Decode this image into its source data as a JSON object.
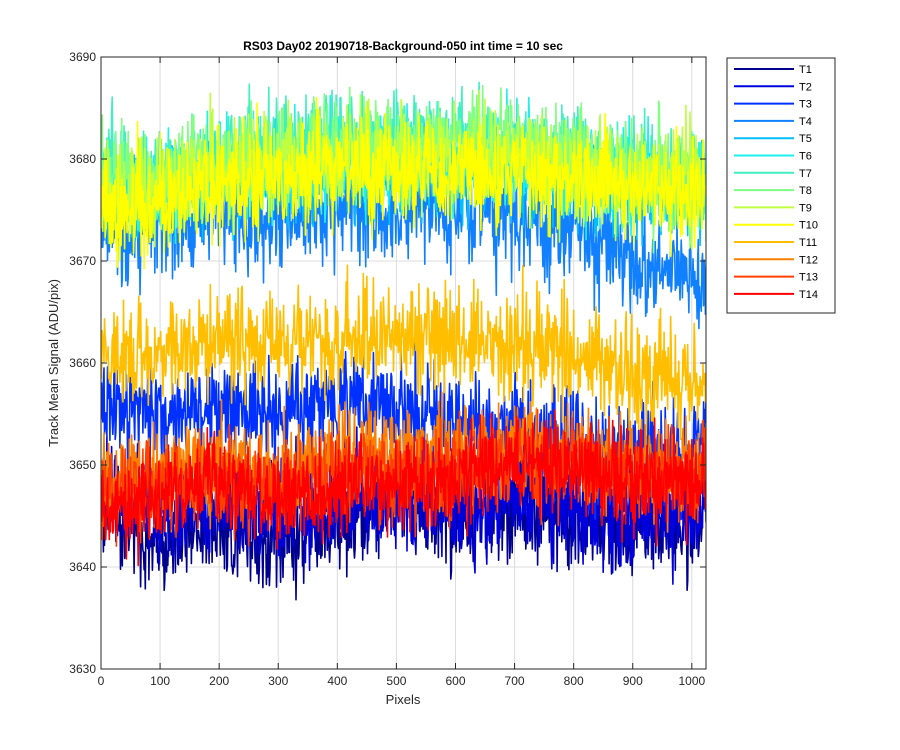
{
  "chart_data": {
    "type": "line",
    "title": "RS03 Day02 20190718-Background-050 int time = 10 sec",
    "xlabel": "Pixels",
    "ylabel": "Track Mean Signal (ADU/pix)",
    "xlim": [
      0,
      1024
    ],
    "ylim": [
      3630,
      3690
    ],
    "xticks": [
      0,
      100,
      200,
      300,
      400,
      500,
      600,
      700,
      800,
      900,
      1000
    ],
    "yticks": [
      3630,
      3640,
      3650,
      3660,
      3670,
      3680,
      3690
    ],
    "grid": true,
    "legend_position": "outside-top-right",
    "profile_x": [
      0,
      100,
      200,
      300,
      400,
      500,
      600,
      700,
      800,
      900,
      1024
    ],
    "series": [
      {
        "name": "T1",
        "color": "#00008f",
        "values": [
          3646,
          3643,
          3644,
          3642,
          3645,
          3646,
          3645,
          3646,
          3645,
          3644,
          3645
        ],
        "spread": 2.6
      },
      {
        "name": "T2",
        "color": "#0000df",
        "values": [
          3648,
          3645,
          3646,
          3645,
          3647,
          3647,
          3646,
          3647,
          3646,
          3645,
          3646
        ],
        "spread": 2.6
      },
      {
        "name": "T3",
        "color": "#0030ff",
        "values": [
          3656,
          3655,
          3656,
          3655,
          3656,
          3656,
          3654,
          3653,
          3652,
          3651,
          3651
        ],
        "spread": 2.6
      },
      {
        "name": "T4",
        "color": "#1080ff",
        "values": [
          3673,
          3674,
          3675,
          3674,
          3675,
          3675,
          3675,
          3674,
          3674,
          3670,
          3668
        ],
        "spread": 2.6
      },
      {
        "name": "T5",
        "color": "#00c0ff",
        "values": [
          3677,
          3677,
          3678,
          3678,
          3679,
          3679,
          3679,
          3679,
          3678,
          3677,
          3676
        ],
        "spread": 2.4
      },
      {
        "name": "T6",
        "color": "#20efef",
        "values": [
          3678,
          3677,
          3679,
          3679,
          3680,
          3680,
          3680,
          3680,
          3679,
          3678,
          3677
        ],
        "spread": 2.4
      },
      {
        "name": "T7",
        "color": "#40f0c0",
        "values": [
          3679,
          3678,
          3680,
          3681,
          3682,
          3682,
          3682,
          3681,
          3680,
          3679,
          3678
        ],
        "spread": 2.6
      },
      {
        "name": "T8",
        "color": "#80ff80",
        "values": [
          3678,
          3678,
          3680,
          3680,
          3681,
          3681,
          3682,
          3681,
          3680,
          3679,
          3678
        ],
        "spread": 2.6
      },
      {
        "name": "T9",
        "color": "#bfff40",
        "values": [
          3677,
          3677,
          3679,
          3679,
          3680,
          3680,
          3680,
          3680,
          3679,
          3678,
          3678
        ],
        "spread": 2.6
      },
      {
        "name": "T10",
        "color": "#ffff00",
        "values": [
          3675,
          3676,
          3678,
          3678,
          3679,
          3679,
          3679,
          3679,
          3678,
          3677,
          3677
        ],
        "spread": 2.6
      },
      {
        "name": "T11",
        "color": "#ffbf00",
        "values": [
          3660,
          3661,
          3662,
          3662,
          3662,
          3663,
          3662,
          3662,
          3661,
          3659,
          3659
        ],
        "spread": 2.6
      },
      {
        "name": "T12",
        "color": "#ff8000",
        "values": [
          3648,
          3649,
          3650,
          3649,
          3651,
          3651,
          3651,
          3652,
          3651,
          3650,
          3650
        ],
        "spread": 2.4
      },
      {
        "name": "T13",
        "color": "#ff4000",
        "values": [
          3647,
          3648,
          3649,
          3648,
          3649,
          3649,
          3649,
          3650,
          3650,
          3649,
          3649
        ],
        "spread": 2.3
      },
      {
        "name": "T14",
        "color": "#ff0000",
        "values": [
          3646,
          3647,
          3648,
          3647,
          3648,
          3648,
          3649,
          3650,
          3650,
          3648,
          3648
        ],
        "spread": 2.3
      }
    ]
  }
}
